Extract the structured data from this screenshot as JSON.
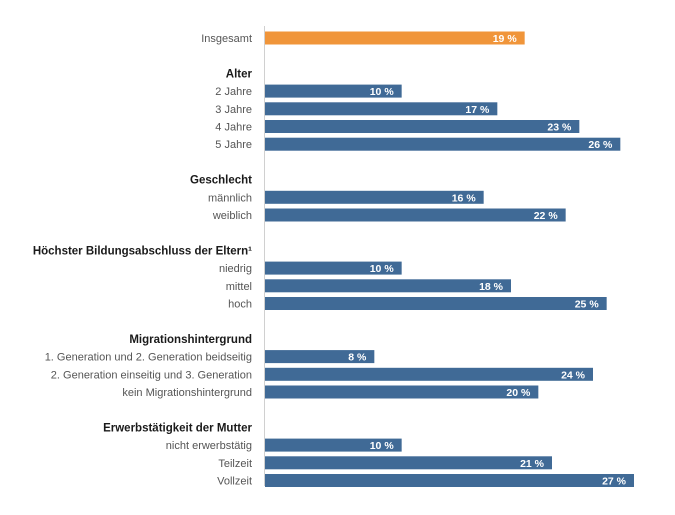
{
  "chart_data": {
    "type": "bar",
    "orientation": "horizontal",
    "value_suffix": " %",
    "xlim": [
      0,
      27
    ],
    "colors": {
      "highlight": "#f0953a",
      "default": "#406a96",
      "axis": "#d0d0d0"
    },
    "groups": [
      {
        "header": "",
        "items": [
          {
            "label": "Insgesamt",
            "value": 19,
            "highlight": true
          }
        ]
      },
      {
        "header": "Alter",
        "items": [
          {
            "label": "2 Jahre",
            "value": 10
          },
          {
            "label": "3 Jahre",
            "value": 17
          },
          {
            "label": "4 Jahre",
            "value": 23
          },
          {
            "label": "5 Jahre",
            "value": 26
          }
        ]
      },
      {
        "header": "Geschlecht",
        "items": [
          {
            "label": "männlich",
            "value": 16
          },
          {
            "label": "weiblich",
            "value": 22
          }
        ]
      },
      {
        "header": "Höchster Bildungsabschluss der Eltern¹",
        "items": [
          {
            "label": "niedrig",
            "value": 10
          },
          {
            "label": "mittel",
            "value": 18
          },
          {
            "label": "hoch",
            "value": 25
          }
        ]
      },
      {
        "header": "Migrationshintergrund",
        "items": [
          {
            "label": "1. Generation und 2. Generation beidseitig",
            "value": 8
          },
          {
            "label": "2. Generation einseitig und 3. Generation",
            "value": 24
          },
          {
            "label": "kein Migrationshintergrund",
            "value": 20
          }
        ]
      },
      {
        "header": "Erwerbstätigkeit der Mutter",
        "items": [
          {
            "label": "nicht erwerbstätig",
            "value": 10
          },
          {
            "label": "Teilzeit",
            "value": 21
          },
          {
            "label": "Vollzeit",
            "value": 27
          }
        ]
      }
    ]
  }
}
